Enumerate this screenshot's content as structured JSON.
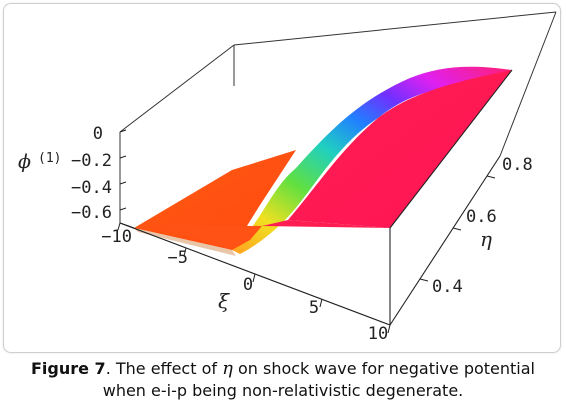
{
  "chart_data": {
    "type": "surface3d",
    "axes": {
      "x": {
        "label": "ξ",
        "ticks": [
          "−10",
          "−5",
          "0",
          "5",
          "10"
        ],
        "range": [
          -10,
          10
        ]
      },
      "y": {
        "label": "η",
        "ticks": [
          "0.4",
          "0.6",
          "0.8"
        ],
        "range": [
          0.3,
          0.9
        ]
      },
      "z": {
        "label": "ϕ",
        "label_superscript": "(1)",
        "ticks": [
          "0",
          "−0.2",
          "−0.4",
          "−0.6"
        ],
        "range": [
          -0.7,
          0
        ]
      }
    },
    "surface": {
      "description": "tanh-shaped shock profile",
      "low_plateau_z": -0.65,
      "high_plateau_z": 0.0
    }
  },
  "caption": {
    "label": "Figure 7",
    "text_before": ". The effect of ",
    "symbol": "η",
    "text_after_line1": " on shock wave for negative potential",
    "line2": "when e-i-p being non-relativistic degenerate."
  },
  "colors": {
    "low_plateau": "#ff4a1a",
    "high_plateau": "#ff1a4f",
    "box_edge": "#222222"
  }
}
